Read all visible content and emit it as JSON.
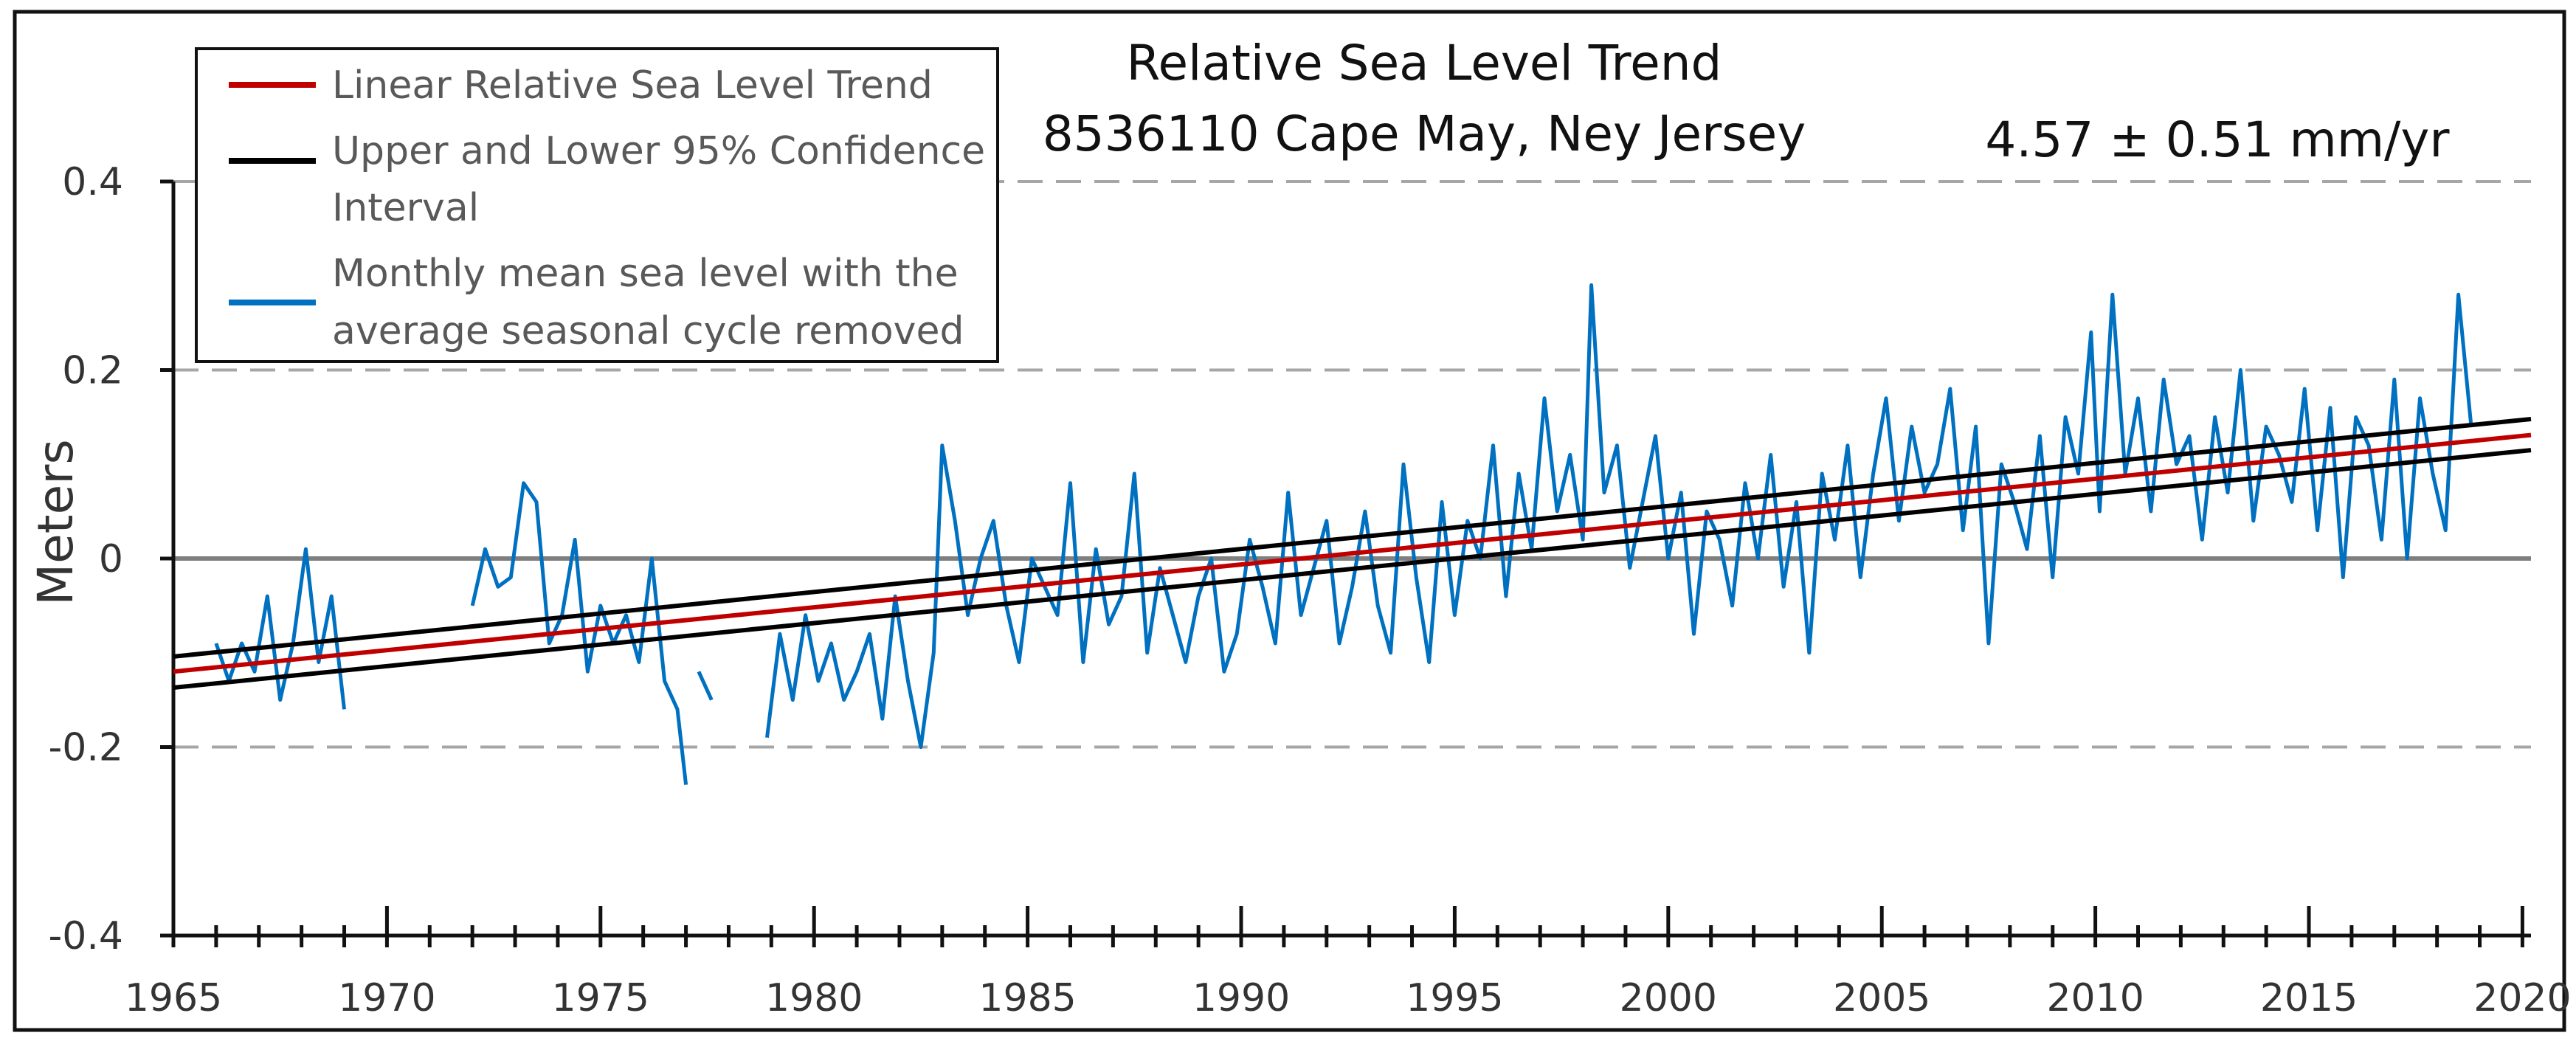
{
  "chart_data": {
    "type": "line",
    "title": "Relative Sea Level Trend",
    "subtitle": "8536110 Cape May, Ney Jersey",
    "annotation": "4.57 ± 0.51 mm/yr",
    "xlabel": "",
    "ylabel": "Meters",
    "xlim": [
      1965,
      2020.2
    ],
    "ylim": [
      -0.4,
      0.4
    ],
    "xticks": [
      1965,
      1970,
      1975,
      1980,
      1985,
      1990,
      1995,
      2000,
      2005,
      2010,
      2015,
      2020
    ],
    "yticks": [
      0.4,
      0.2,
      0,
      -0.2,
      -0.4
    ],
    "xtick_labels": [
      "1965",
      "1970",
      "1975",
      "1980",
      "1985",
      "1990",
      "1995",
      "2000",
      "2005",
      "2010",
      "2015",
      "2020"
    ],
    "ytick_labels": [
      "0.4",
      "0.2",
      "0",
      "-0.2",
      "-0.4"
    ],
    "grid": "dashed horizontal at ±0.2, 0.4; solid zero line",
    "legend_position": "top-left",
    "legend": [
      {
        "label": "Linear Relative Sea Level Trend",
        "color": "#c00000"
      },
      {
        "label_lines": [
          "Upper and Lower 95% Confidence",
          "Interval"
        ],
        "color": "#000000"
      },
      {
        "label_lines": [
          "Monthly mean sea level with the",
          "average seasonal cycle removed"
        ],
        "color": "#0070c0"
      }
    ],
    "series": [
      {
        "name": "Linear Relative Sea Level Trend",
        "kind": "trend",
        "color": "#c00000",
        "x": [
          1965,
          2020.2
        ],
        "y": [
          -0.12,
          0.131
        ]
      },
      {
        "name": "Upper 95% Confidence Interval",
        "kind": "trend",
        "color": "#000000",
        "x": [
          1965,
          2020.2
        ],
        "y": [
          -0.104,
          0.148
        ]
      },
      {
        "name": "Lower 95% Confidence Interval",
        "kind": "trend",
        "color": "#000000",
        "x": [
          1965,
          2020.2
        ],
        "y": [
          -0.137,
          0.115
        ]
      },
      {
        "name": "Monthly mean sea level with the average seasonal cycle removed",
        "kind": "monthly",
        "color": "#0070c0",
        "segments": [
          {
            "x": [
              1966.0,
              1966.3,
              1966.6,
              1966.9,
              1967.2,
              1967.5,
              1967.8,
              1968.1,
              1968.4,
              1968.7,
              1969.0
            ],
            "y": [
              -0.09,
              -0.13,
              -0.09,
              -0.12,
              -0.04,
              -0.15,
              -0.09,
              0.01,
              -0.11,
              -0.04,
              -0.16
            ]
          },
          {
            "x": [
              1972.0,
              1972.3,
              1972.6,
              1972.9,
              1973.2,
              1973.5,
              1973.8,
              1974.1,
              1974.4,
              1974.7,
              1975.0,
              1975.3,
              1975.6,
              1975.9,
              1976.2,
              1976.5,
              1976.8,
              1977.0
            ],
            "y": [
              -0.05,
              0.01,
              -0.03,
              -0.02,
              0.08,
              0.06,
              -0.09,
              -0.06,
              0.02,
              -0.12,
              -0.05,
              -0.09,
              -0.06,
              -0.11,
              0.0,
              -0.13,
              -0.16,
              -0.24
            ]
          },
          {
            "x": [
              1977.3,
              1977.6
            ],
            "y": [
              -0.12,
              -0.15
            ]
          },
          {
            "x": [
              1978.9,
              1979.2,
              1979.5,
              1979.8,
              1980.1,
              1980.4,
              1980.7,
              1981.0,
              1981.3,
              1981.6,
              1981.9,
              1982.2,
              1982.5,
              1982.8,
              1983.0,
              1983.3,
              1983.6,
              1983.9,
              1984.2,
              1984.5,
              1984.8,
              1985.1,
              1985.4,
              1985.7,
              1986.0,
              1986.3,
              1986.6,
              1986.9,
              1987.2,
              1987.5,
              1987.8,
              1988.1,
              1988.4,
              1988.7,
              1989.0,
              1989.3,
              1989.6,
              1989.9,
              1990.2,
              1990.5,
              1990.8,
              1991.1,
              1991.4,
              1991.7,
              1992.0,
              1992.3,
              1992.6,
              1992.9,
              1993.2,
              1993.5,
              1993.8,
              1994.1,
              1994.4,
              1994.7,
              1995.0,
              1995.3,
              1995.6,
              1995.9,
              1996.2,
              1996.5,
              1996.8,
              1997.1,
              1997.4,
              1997.7,
              1998.0,
              1998.2,
              1998.5,
              1998.8,
              1999.1,
              1999.4,
              1999.7,
              2000.0,
              2000.3,
              2000.6,
              2000.9,
              2001.2,
              2001.5,
              2001.8,
              2002.1,
              2002.4,
              2002.7,
              2003.0,
              2003.3,
              2003.6,
              2003.9,
              2004.2,
              2004.5,
              2004.8,
              2005.1,
              2005.4,
              2005.7,
              2006.0,
              2006.3,
              2006.6,
              2006.9,
              2007.2,
              2007.5,
              2007.8,
              2008.1,
              2008.4,
              2008.7,
              2009.0,
              2009.3,
              2009.6,
              2009.9,
              2010.1,
              2010.4,
              2010.7,
              2011.0,
              2011.3,
              2011.6,
              2011.9,
              2012.2,
              2012.5,
              2012.8,
              2013.1,
              2013.4,
              2013.7,
              2014.0,
              2014.3,
              2014.6,
              2014.9,
              2015.2,
              2015.5,
              2015.8,
              2016.1,
              2016.4,
              2016.7,
              2017.0,
              2017.3,
              2017.6,
              2017.9,
              2018.2,
              2018.5,
              2018.8
            ],
            "y": [
              -0.19,
              -0.08,
              -0.15,
              -0.06,
              -0.13,
              -0.09,
              -0.15,
              -0.12,
              -0.08,
              -0.17,
              -0.04,
              -0.13,
              -0.2,
              -0.1,
              0.12,
              0.04,
              -0.06,
              0.0,
              0.04,
              -0.05,
              -0.11,
              0.0,
              -0.03,
              -0.06,
              0.08,
              -0.11,
              0.01,
              -0.07,
              -0.04,
              0.09,
              -0.1,
              -0.01,
              -0.06,
              -0.11,
              -0.04,
              0.0,
              -0.12,
              -0.08,
              0.02,
              -0.03,
              -0.09,
              0.07,
              -0.06,
              -0.01,
              0.04,
              -0.09,
              -0.03,
              0.05,
              -0.05,
              -0.1,
              0.1,
              -0.02,
              -0.11,
              0.06,
              -0.06,
              0.04,
              0.0,
              0.12,
              -0.04,
              0.09,
              0.01,
              0.17,
              0.05,
              0.11,
              0.02,
              0.29,
              0.07,
              0.12,
              -0.01,
              0.06,
              0.13,
              0.0,
              0.07,
              -0.08,
              0.05,
              0.02,
              -0.05,
              0.08,
              0.0,
              0.11,
              -0.03,
              0.06,
              -0.1,
              0.09,
              0.02,
              0.12,
              -0.02,
              0.09,
              0.17,
              0.04,
              0.14,
              0.07,
              0.1,
              0.18,
              0.03,
              0.14,
              -0.09,
              0.1,
              0.06,
              0.01,
              0.13,
              -0.02,
              0.15,
              0.09,
              0.24,
              0.05,
              0.28,
              0.09,
              0.17,
              0.05,
              0.19,
              0.1,
              0.13,
              0.02,
              0.15,
              0.07,
              0.2,
              0.04,
              0.14,
              0.11,
              0.06,
              0.18,
              0.03,
              0.16,
              -0.02,
              0.15,
              0.12,
              0.02,
              0.19,
              0.0,
              0.17,
              0.09,
              0.03,
              0.28,
              0.14
            ]
          }
        ]
      }
    ]
  }
}
